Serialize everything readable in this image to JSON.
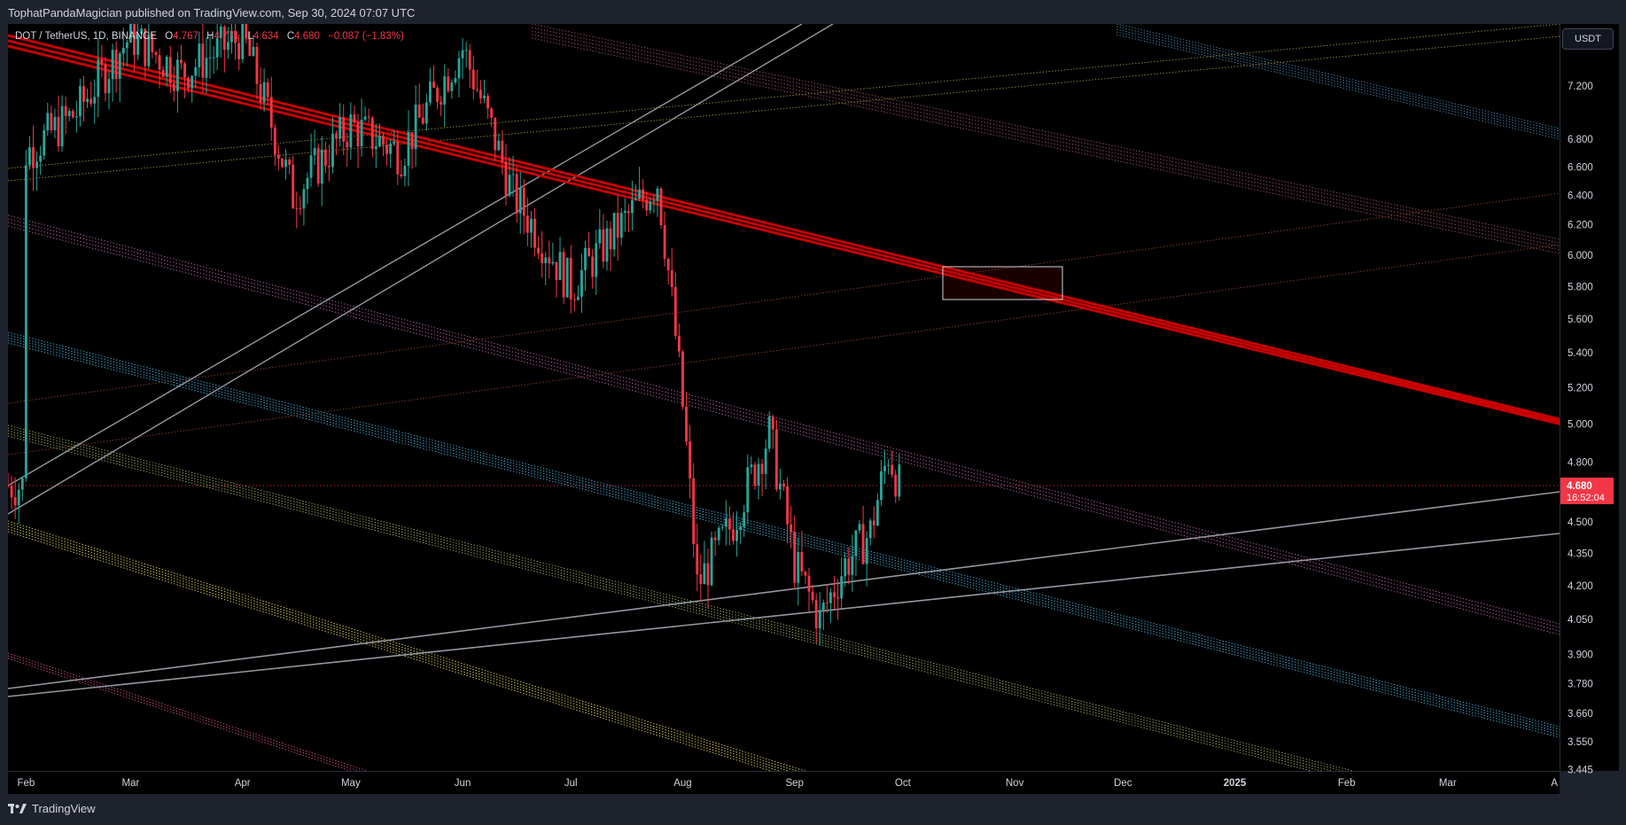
{
  "header": {
    "publish_text": "TophatPandaMagician published on TradingView.com, Sep 30, 2024 07:07 UTC"
  },
  "legend": {
    "symbol": "DOT / TetherUS, 1D, BINANCE",
    "o_label": "O",
    "o_value": "4.767",
    "h_label": "H",
    "h_value": "4.771",
    "l_label": "L",
    "l_value": "4.634",
    "c_label": "C",
    "c_value": "4.680",
    "change": "−0.087 (−1.83%)"
  },
  "currency_button": "USDT",
  "footer": {
    "brand": "TradingView"
  },
  "colors": {
    "background": "#000000",
    "up": "#26a69a",
    "down": "#f23645",
    "resistance": "#c80000",
    "price_label_bg": "#f23645"
  },
  "chart_data": {
    "type": "candlestick",
    "symbol": "DOT / TetherUS",
    "interval": "1D",
    "exchange": "BINANCE",
    "last_price": "4.680",
    "countdown": "16:52:04",
    "y_scale": "log",
    "ylim": [
      3.44,
      7.7
    ],
    "y_ticks": [
      "7.200",
      "6.800",
      "6.600",
      "6.400",
      "6.200",
      "6.000",
      "5.800",
      "5.600",
      "5.400",
      "5.200",
      "5.000",
      "4.800",
      "4.500",
      "4.350",
      "4.200",
      "4.050",
      "3.900",
      "3.780",
      "3.660",
      "3.550",
      "3.445"
    ],
    "x_ticks": [
      "Feb",
      "Mar",
      "Apr",
      "May",
      "Jun",
      "Jul",
      "Aug",
      "Sep",
      "Oct",
      "Nov",
      "Dec",
      "2025",
      "Feb",
      "Mar",
      "A"
    ],
    "x_range": [
      "2024-01-27",
      "2025-04-01"
    ],
    "series": [
      {
        "x": [
          "2024-02-01",
          "2024-02-15",
          "2024-03-01",
          "2024-03-15",
          "2024-04-01",
          "2024-04-15",
          "2024-05-01",
          "2024-05-15",
          "2024-06-01",
          "2024-06-15",
          "2024-07-01",
          "2024-07-15",
          "2024-07-25",
          "2024-08-01",
          "2024-08-05",
          "2024-08-15",
          "2024-08-25",
          "2024-09-01",
          "2024-09-08",
          "2024-09-15",
          "2024-09-22",
          "2024-09-27",
          "2024-09-30"
        ],
        "close": [
          6.7,
          7.0,
          7.6,
          7.3,
          7.6,
          6.4,
          6.9,
          6.7,
          7.5,
          6.4,
          5.8,
          6.2,
          6.5,
          5.1,
          4.2,
          4.5,
          4.95,
          4.3,
          4.05,
          4.3,
          4.45,
          4.85,
          4.68
        ]
      }
    ]
  }
}
